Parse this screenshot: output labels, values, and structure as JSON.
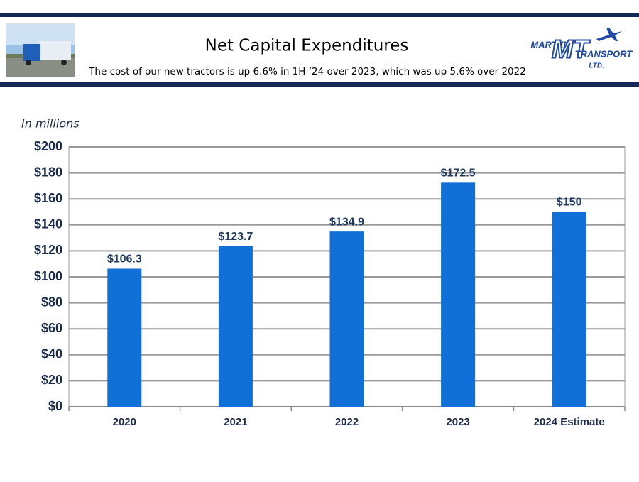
{
  "header": {
    "title": "Net Capital Expenditures",
    "subtitle": "The cost of our new tractors is up 6.6% in 1H ’24 over 2023, which was up 5.6% over 2022"
  },
  "logo": {
    "word1": "MARTEN",
    "monogram": "MT",
    "word2": "TRANSPORT",
    "word3": "LTD."
  },
  "chart_data": {
    "type": "bar",
    "y_label": "In millions",
    "categories": [
      "2020",
      "2021",
      "2022",
      "2023",
      "2024 Estimate"
    ],
    "values": [
      106.3,
      123.7,
      134.9,
      172.5,
      150
    ],
    "value_labels": [
      "$106.3",
      "$123.7",
      "$134.9",
      "$172.5",
      "$150"
    ],
    "color": "#1170d8",
    "ylim": [
      0,
      200
    ],
    "yticks": [
      {
        "value": 0,
        "label": "$0"
      },
      {
        "value": 20,
        "label": "$20"
      },
      {
        "value": 40,
        "label": "$40"
      },
      {
        "value": 60,
        "label": "$60"
      },
      {
        "value": 80,
        "label": "$80"
      },
      {
        "value": 100,
        "label": "$100"
      },
      {
        "value": 120,
        "label": "$120"
      },
      {
        "value": 140,
        "label": "$140"
      },
      {
        "value": 160,
        "label": "$160"
      },
      {
        "value": 180,
        "label": "$180"
      },
      {
        "value": 200,
        "label": "$200"
      }
    ],
    "grid": true
  }
}
